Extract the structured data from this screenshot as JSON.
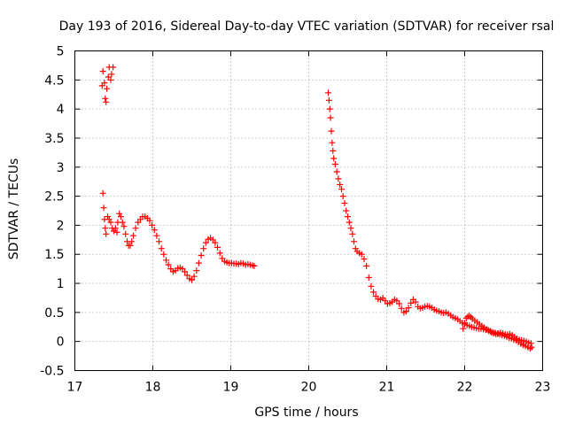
{
  "chart_data": {
    "type": "scatter",
    "title": "Day 193 of 2016, Sidereal Day-to-day VTEC variation (SDTVAR) for receiver rsal",
    "xlabel": "GPS time / hours",
    "ylabel": "SDTVAR / TECUs",
    "xlim": [
      17,
      23
    ],
    "ylim": [
      -0.5,
      5
    ],
    "xticks": [
      "17",
      "18",
      "19",
      "20",
      "21",
      "22",
      "23"
    ],
    "yticks": [
      "-0.5",
      "0",
      "0.5",
      "1",
      "1.5",
      "2",
      "2.5",
      "3",
      "3.5",
      "4",
      "4.5",
      "5"
    ],
    "grid": true,
    "marker": "+",
    "series": [
      {
        "name": "SDTVAR",
        "color": "#ff0000",
        "points": [
          [
            17.35,
            4.4
          ],
          [
            17.36,
            4.65
          ],
          [
            17.38,
            4.45
          ],
          [
            17.39,
            4.18
          ],
          [
            17.4,
            4.12
          ],
          [
            17.41,
            4.35
          ],
          [
            17.43,
            4.55
          ],
          [
            17.44,
            4.72
          ],
          [
            17.46,
            4.5
          ],
          [
            17.47,
            4.6
          ],
          [
            17.49,
            4.72
          ],
          [
            17.36,
            2.55
          ],
          [
            17.37,
            2.3
          ],
          [
            17.38,
            2.1
          ],
          [
            17.39,
            1.95
          ],
          [
            17.4,
            1.85
          ],
          [
            17.42,
            2.15
          ],
          [
            17.44,
            2.1
          ],
          [
            17.46,
            2.05
          ],
          [
            17.48,
            1.95
          ],
          [
            17.5,
            1.9
          ],
          [
            17.52,
            1.95
          ],
          [
            17.54,
            1.88
          ],
          [
            17.55,
            2.05
          ],
          [
            17.57,
            2.2
          ],
          [
            17.59,
            2.15
          ],
          [
            17.61,
            2.05
          ],
          [
            17.63,
            1.98
          ],
          [
            17.65,
            1.85
          ],
          [
            17.67,
            1.72
          ],
          [
            17.69,
            1.65
          ],
          [
            17.71,
            1.65
          ],
          [
            17.73,
            1.72
          ],
          [
            17.75,
            1.82
          ],
          [
            17.78,
            1.95
          ],
          [
            17.81,
            2.05
          ],
          [
            17.84,
            2.1
          ],
          [
            17.87,
            2.15
          ],
          [
            17.9,
            2.15
          ],
          [
            17.93,
            2.12
          ],
          [
            17.96,
            2.08
          ],
          [
            17.99,
            2.0
          ],
          [
            18.02,
            1.92
          ],
          [
            18.05,
            1.82
          ],
          [
            18.08,
            1.72
          ],
          [
            18.11,
            1.6
          ],
          [
            18.14,
            1.5
          ],
          [
            18.17,
            1.4
          ],
          [
            18.2,
            1.32
          ],
          [
            18.23,
            1.25
          ],
          [
            18.26,
            1.2
          ],
          [
            18.29,
            1.22
          ],
          [
            18.32,
            1.26
          ],
          [
            18.35,
            1.27
          ],
          [
            18.38,
            1.25
          ],
          [
            18.41,
            1.2
          ],
          [
            18.44,
            1.14
          ],
          [
            18.47,
            1.08
          ],
          [
            18.5,
            1.06
          ],
          [
            18.53,
            1.12
          ],
          [
            18.56,
            1.22
          ],
          [
            18.59,
            1.35
          ],
          [
            18.62,
            1.48
          ],
          [
            18.65,
            1.6
          ],
          [
            18.68,
            1.7
          ],
          [
            18.71,
            1.76
          ],
          [
            18.74,
            1.78
          ],
          [
            18.77,
            1.75
          ],
          [
            18.8,
            1.7
          ],
          [
            18.83,
            1.62
          ],
          [
            18.86,
            1.52
          ],
          [
            18.89,
            1.43
          ],
          [
            18.92,
            1.38
          ],
          [
            18.95,
            1.36
          ],
          [
            18.98,
            1.35
          ],
          [
            19.01,
            1.35
          ],
          [
            19.04,
            1.34
          ],
          [
            19.07,
            1.34
          ],
          [
            19.1,
            1.33
          ],
          [
            19.13,
            1.35
          ],
          [
            19.16,
            1.34
          ],
          [
            19.19,
            1.32
          ],
          [
            19.22,
            1.33
          ],
          [
            19.25,
            1.32
          ],
          [
            19.28,
            1.31
          ],
          [
            19.3,
            1.3
          ],
          [
            20.25,
            4.28
          ],
          [
            20.26,
            4.15
          ],
          [
            20.27,
            4.0
          ],
          [
            20.28,
            3.85
          ],
          [
            20.29,
            3.62
          ],
          [
            20.3,
            3.42
          ],
          [
            20.31,
            3.28
          ],
          [
            20.32,
            3.15
          ],
          [
            20.34,
            3.05
          ],
          [
            20.36,
            2.92
          ],
          [
            20.38,
            2.8
          ],
          [
            20.4,
            2.7
          ],
          [
            20.42,
            2.62
          ],
          [
            20.44,
            2.5
          ],
          [
            20.46,
            2.38
          ],
          [
            20.48,
            2.25
          ],
          [
            20.5,
            2.15
          ],
          [
            20.52,
            2.05
          ],
          [
            20.54,
            1.95
          ],
          [
            20.56,
            1.85
          ],
          [
            20.58,
            1.72
          ],
          [
            20.6,
            1.6
          ],
          [
            20.62,
            1.55
          ],
          [
            20.65,
            1.52
          ],
          [
            20.68,
            1.5
          ],
          [
            20.71,
            1.42
          ],
          [
            20.74,
            1.3
          ],
          [
            20.77,
            1.1
          ],
          [
            20.8,
            0.95
          ],
          [
            20.83,
            0.85
          ],
          [
            20.86,
            0.78
          ],
          [
            20.89,
            0.73
          ],
          [
            20.92,
            0.72
          ],
          [
            20.95,
            0.75
          ],
          [
            20.98,
            0.7
          ],
          [
            21.01,
            0.65
          ],
          [
            21.04,
            0.66
          ],
          [
            21.07,
            0.68
          ],
          [
            21.1,
            0.72
          ],
          [
            21.13,
            0.7
          ],
          [
            21.16,
            0.65
          ],
          [
            21.19,
            0.57
          ],
          [
            21.22,
            0.5
          ],
          [
            21.25,
            0.52
          ],
          [
            21.28,
            0.58
          ],
          [
            21.31,
            0.66
          ],
          [
            21.34,
            0.72
          ],
          [
            21.37,
            0.68
          ],
          [
            21.4,
            0.6
          ],
          [
            21.43,
            0.57
          ],
          [
            21.46,
            0.58
          ],
          [
            21.49,
            0.6
          ],
          [
            21.52,
            0.61
          ],
          [
            21.55,
            0.6
          ],
          [
            21.58,
            0.58
          ],
          [
            21.61,
            0.55
          ],
          [
            21.64,
            0.53
          ],
          [
            21.67,
            0.52
          ],
          [
            21.7,
            0.5
          ],
          [
            21.73,
            0.49
          ],
          [
            21.76,
            0.5
          ],
          [
            21.79,
            0.48
          ],
          [
            21.82,
            0.45
          ],
          [
            21.85,
            0.42
          ],
          [
            21.88,
            0.4
          ],
          [
            21.91,
            0.38
          ],
          [
            21.94,
            0.35
          ],
          [
            21.97,
            0.32
          ],
          [
            22.0,
            0.3
          ],
          [
            22.03,
            0.28
          ],
          [
            22.06,
            0.27
          ],
          [
            22.09,
            0.25
          ],
          [
            22.12,
            0.24
          ],
          [
            22.15,
            0.23
          ],
          [
            22.18,
            0.22
          ],
          [
            22.21,
            0.22
          ],
          [
            22.24,
            0.21
          ],
          [
            22.27,
            0.2
          ],
          [
            22.3,
            0.2
          ],
          [
            22.33,
            0.18
          ],
          [
            22.36,
            0.16
          ],
          [
            22.39,
            0.15
          ],
          [
            22.42,
            0.13
          ],
          [
            22.45,
            0.12
          ],
          [
            22.48,
            0.11
          ],
          [
            22.51,
            0.1
          ],
          [
            22.54,
            0.08
          ],
          [
            22.57,
            0.06
          ],
          [
            22.6,
            0.05
          ],
          [
            22.63,
            0.03
          ],
          [
            22.66,
            0.02
          ],
          [
            22.69,
            -0.01
          ],
          [
            22.72,
            -0.04
          ],
          [
            22.75,
            -0.06
          ],
          [
            22.78,
            -0.08
          ],
          [
            22.81,
            -0.1
          ],
          [
            22.84,
            -0.12
          ],
          [
            22.86,
            -0.1
          ],
          [
            21.98,
            0.22
          ],
          [
            22.0,
            0.32
          ],
          [
            22.02,
            0.4
          ],
          [
            22.04,
            0.43
          ],
          [
            22.06,
            0.44
          ],
          [
            22.08,
            0.42
          ],
          [
            22.1,
            0.39
          ],
          [
            22.13,
            0.36
          ],
          [
            22.16,
            0.33
          ],
          [
            22.19,
            0.3
          ],
          [
            22.22,
            0.27
          ],
          [
            22.25,
            0.24
          ],
          [
            22.28,
            0.21
          ],
          [
            22.31,
            0.18
          ],
          [
            22.34,
            0.16
          ],
          [
            22.37,
            0.14
          ],
          [
            22.4,
            0.13
          ],
          [
            22.43,
            0.14
          ],
          [
            22.46,
            0.15
          ],
          [
            22.49,
            0.14
          ],
          [
            22.52,
            0.12
          ],
          [
            22.55,
            0.12
          ],
          [
            22.58,
            0.13
          ],
          [
            22.61,
            0.11
          ],
          [
            22.64,
            0.08
          ],
          [
            22.67,
            0.05
          ],
          [
            22.7,
            0.03
          ],
          [
            22.73,
            0.02
          ],
          [
            22.76,
            0.01
          ],
          [
            22.79,
            0.0
          ],
          [
            22.82,
            -0.02
          ],
          [
            22.85,
            -0.03
          ]
        ]
      }
    ]
  }
}
